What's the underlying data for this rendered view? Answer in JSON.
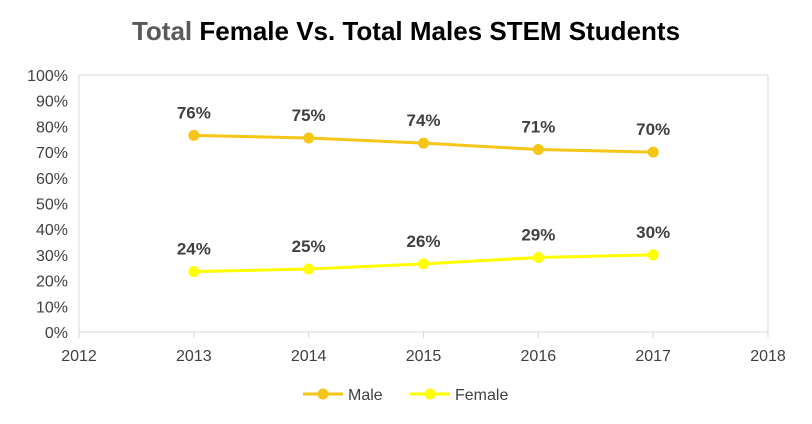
{
  "title": {
    "lead": "Total",
    "rest": "Female Vs. Total Males STEM Students"
  },
  "chart_data": {
    "type": "line",
    "title": "Total Female Vs. Total Males STEM Students",
    "xlabel": "",
    "ylabel": "",
    "xlim": [
      2012,
      2018
    ],
    "ylim": [
      0,
      100
    ],
    "x_ticks": [
      "2012",
      "2013",
      "2014",
      "2015",
      "2016",
      "2017",
      "2018"
    ],
    "y_ticks": [
      "0%",
      "10%",
      "20%",
      "30%",
      "40%",
      "50%",
      "60%",
      "70%",
      "80%",
      "90%",
      "100%"
    ],
    "x": [
      2013,
      2014,
      2015,
      2016,
      2017
    ],
    "series": [
      {
        "name": "Male",
        "color": "#F5C518",
        "values": [
          76.5,
          75.5,
          73.5,
          71,
          70
        ],
        "labels": [
          "76%",
          "75%",
          "74%",
          "71%",
          "70%"
        ]
      },
      {
        "name": "Female",
        "color": "#FFFF00",
        "values": [
          23.5,
          24.5,
          26.5,
          29,
          30
        ],
        "labels": [
          "24%",
          "25%",
          "26%",
          "29%",
          "30%"
        ]
      }
    ],
    "grid": false,
    "legend": "bottom"
  }
}
